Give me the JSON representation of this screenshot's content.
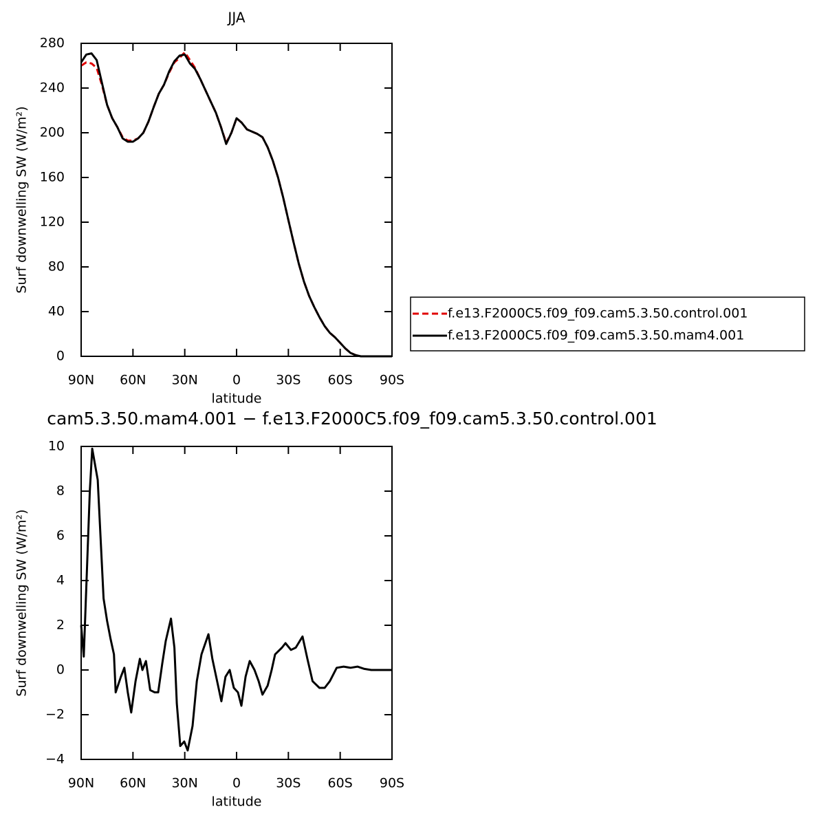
{
  "chart_data": [
    {
      "type": "line",
      "title": "JJA",
      "xlabel": "latitude",
      "ylabel": "Surf downwelling SW (W/m²)",
      "x": [
        90,
        87,
        84,
        81,
        78,
        75,
        72,
        69,
        66,
        63,
        60,
        57,
        54,
        51,
        48,
        45,
        42,
        39,
        36,
        33,
        30,
        27,
        24,
        21,
        18,
        15,
        12,
        9,
        6,
        3,
        0,
        -3,
        -6,
        -9,
        -12,
        -15,
        -18,
        -21,
        -24,
        -27,
        -30,
        -33,
        -36,
        -39,
        -42,
        -45,
        -48,
        -51,
        -54,
        -57,
        -60,
        -63,
        -66,
        -69,
        -72,
        -75,
        -78,
        -81,
        -84,
        -87,
        -90
      ],
      "series": [
        {
          "name": "f.e13.F2000C5.f09_f09.cam5.3.50.control.001",
          "color": "#e00000",
          "dash": true,
          "values": [
            260,
            263,
            262,
            258,
            243,
            225,
            213,
            205,
            196,
            193,
            193,
            195,
            200,
            210,
            223,
            235,
            243,
            254,
            263,
            267,
            272,
            265,
            258,
            248,
            238,
            228,
            218,
            205,
            191,
            200,
            213,
            209,
            203,
            201,
            199,
            196,
            187,
            175,
            160,
            142,
            122,
            102,
            83,
            67,
            54,
            44,
            35,
            27,
            21,
            17,
            12,
            7,
            3,
            1,
            0,
            0,
            0,
            0,
            0,
            0,
            0
          ]
        },
        {
          "name": "f.e13.F2000C5.f09_f09.cam5.3.50.mam4.001",
          "color": "#000000",
          "dash": false,
          "values": [
            263,
            270,
            271,
            265,
            245,
            225,
            213,
            205,
            195,
            192,
            192,
            195,
            200,
            210,
            223,
            235,
            243,
            255,
            264,
            269,
            270,
            262,
            257,
            248,
            238,
            228,
            218,
            205,
            190,
            200,
            213,
            209,
            203,
            201,
            199,
            196,
            187,
            175,
            160,
            142,
            122,
            102,
            83,
            67,
            54,
            44,
            35,
            27,
            21,
            17,
            12,
            7,
            3,
            1,
            0,
            0,
            0,
            0,
            0,
            0,
            0
          ]
        }
      ],
      "xlim": [
        90,
        -90
      ],
      "xticks": [
        {
          "value": 90,
          "label": "90N"
        },
        {
          "value": 60,
          "label": "60N"
        },
        {
          "value": 30,
          "label": "30N"
        },
        0,
        {
          "value": -30,
          "label": "30S"
        },
        {
          "value": -60,
          "label": "60S"
        },
        {
          "value": -90,
          "label": "90S"
        }
      ],
      "ylim": [
        0,
        280
      ],
      "yticks": [
        0,
        40,
        80,
        120,
        160,
        200,
        240,
        280
      ],
      "legend": "right"
    },
    {
      "type": "line",
      "title": "cam5.3.50.mam4.001 − f.e13.F2000C5.f09_f09.cam5.3.50.control.001",
      "xlabel": "latitude",
      "ylabel": "Surf downwelling SW (W/m²)",
      "x": [
        90,
        88.5,
        85,
        83.6,
        80.4,
        77,
        75,
        73,
        71,
        70,
        67,
        65,
        63,
        61,
        58.5,
        56,
        54.5,
        52.5,
        50,
        47.4,
        45.4,
        43,
        41,
        38,
        36,
        34.6,
        32.6,
        30.3,
        28.3,
        25.5,
        23,
        20.3,
        16.3,
        14,
        11,
        8.8,
        6.4,
        4,
        1.6,
        -0.8,
        -2.8,
        -5.2,
        -7.6,
        -10.4,
        -12.8,
        -15,
        -18,
        -20.3,
        -22.3,
        -26.3,
        -28.3,
        -31.5,
        -34.3,
        -38.2,
        -41,
        -44,
        -48,
        -51,
        -54,
        -58,
        -62,
        -66,
        -70,
        -74,
        -78,
        -90
      ],
      "series": [
        {
          "color": "#000000",
          "dash": false,
          "values": [
            2,
            0.6,
            8,
            9.9,
            8.5,
            3.2,
            2.2,
            1.4,
            0.7,
            -1,
            -0.3,
            0.1,
            -1,
            -1.9,
            -0.5,
            0.5,
            0,
            0.4,
            -0.9,
            -1,
            -1,
            0.3,
            1.3,
            2.3,
            1,
            -1.5,
            -3.4,
            -3.2,
            -3.6,
            -2.5,
            -0.5,
            0.7,
            1.6,
            0.5,
            -0.6,
            -1.4,
            -0.3,
            0,
            -0.8,
            -1,
            -1.6,
            -0.3,
            0.4,
            0,
            -0.5,
            -1.1,
            -0.7,
            0,
            0.7,
            1,
            1.2,
            0.9,
            1,
            1.5,
            0.5,
            -0.5,
            -0.8,
            -0.8,
            -0.5,
            0.1,
            0.15,
            0.1,
            0.15,
            0.05,
            0,
            0
          ]
        }
      ],
      "xlim": [
        90,
        -90
      ],
      "xticks": [
        {
          "value": 90,
          "label": "90N"
        },
        {
          "value": 60,
          "label": "60N"
        },
        {
          "value": 30,
          "label": "30N"
        },
        0,
        {
          "value": -30,
          "label": "30S"
        },
        {
          "value": -60,
          "label": "60S"
        },
        {
          "value": -90,
          "label": "90S"
        }
      ],
      "ylim": [
        -4,
        10
      ],
      "yticks": [
        {
          "value": -4,
          "label": "−4"
        },
        {
          "value": -2,
          "label": "−2"
        },
        0,
        2,
        4,
        6,
        8,
        10
      ]
    }
  ]
}
